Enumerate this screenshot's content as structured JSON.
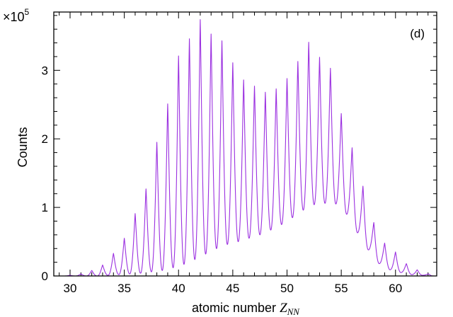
{
  "chart_data": {
    "type": "line",
    "panel_label": "(d)",
    "xlabel_text": "atomic number ",
    "xlabel_var": "Z",
    "xlabel_sub": "NN",
    "ylabel": "Counts",
    "y_multiplier_base": "×10",
    "y_multiplier_exp": "5",
    "xlim": [
      28.5,
      63.8
    ],
    "ylim": [
      0,
      3.85
    ],
    "x_ticks": [
      30,
      35,
      40,
      45,
      50,
      55,
      60
    ],
    "y_ticks": [
      0,
      1,
      2,
      3
    ],
    "grid": false,
    "line_color": "#9b30e0",
    "series": [
      {
        "peaks": {
          "z": [
            30,
            31,
            32,
            33,
            34,
            35,
            36,
            37,
            38,
            39,
            40,
            41,
            42,
            43,
            44,
            45,
            46,
            47,
            48,
            49,
            50,
            51,
            52,
            53,
            54,
            55,
            56,
            57,
            58,
            59,
            60,
            61,
            62,
            63
          ],
          "counts": [
            0.01,
            0.03,
            0.08,
            0.16,
            0.33,
            0.55,
            0.91,
            1.27,
            1.95,
            2.51,
            3.21,
            3.46,
            3.74,
            3.53,
            3.43,
            3.11,
            2.86,
            2.77,
            2.68,
            2.73,
            2.88,
            3.13,
            3.41,
            3.19,
            3.03,
            2.37,
            1.87,
            1.31,
            0.78,
            0.48,
            0.35,
            0.18,
            0.09,
            0.03
          ]
        },
        "valleys": {
          "z": [
            30.5,
            31.5,
            32.5,
            33.5,
            34.5,
            35.5,
            36.5,
            37.5,
            38.5,
            39.5,
            40.5,
            41.5,
            42.5,
            43.5,
            44.5,
            45.5,
            46.5,
            47.5,
            48.5,
            49.5,
            50.5,
            51.5,
            52.5,
            53.5,
            54.5,
            55.5,
            56.5,
            57.5,
            58.5,
            59.5,
            60.5,
            61.5,
            62.5
          ],
          "counts": [
            0.0,
            0.0,
            0.0,
            0.01,
            0.02,
            0.03,
            0.04,
            0.06,
            0.08,
            0.12,
            0.17,
            0.24,
            0.32,
            0.4,
            0.46,
            0.5,
            0.55,
            0.6,
            0.67,
            0.75,
            0.85,
            0.96,
            1.04,
            1.06,
            1.05,
            0.9,
            0.63,
            0.38,
            0.18,
            0.09,
            0.05,
            0.02,
            0.01
          ]
        }
      }
    ]
  }
}
